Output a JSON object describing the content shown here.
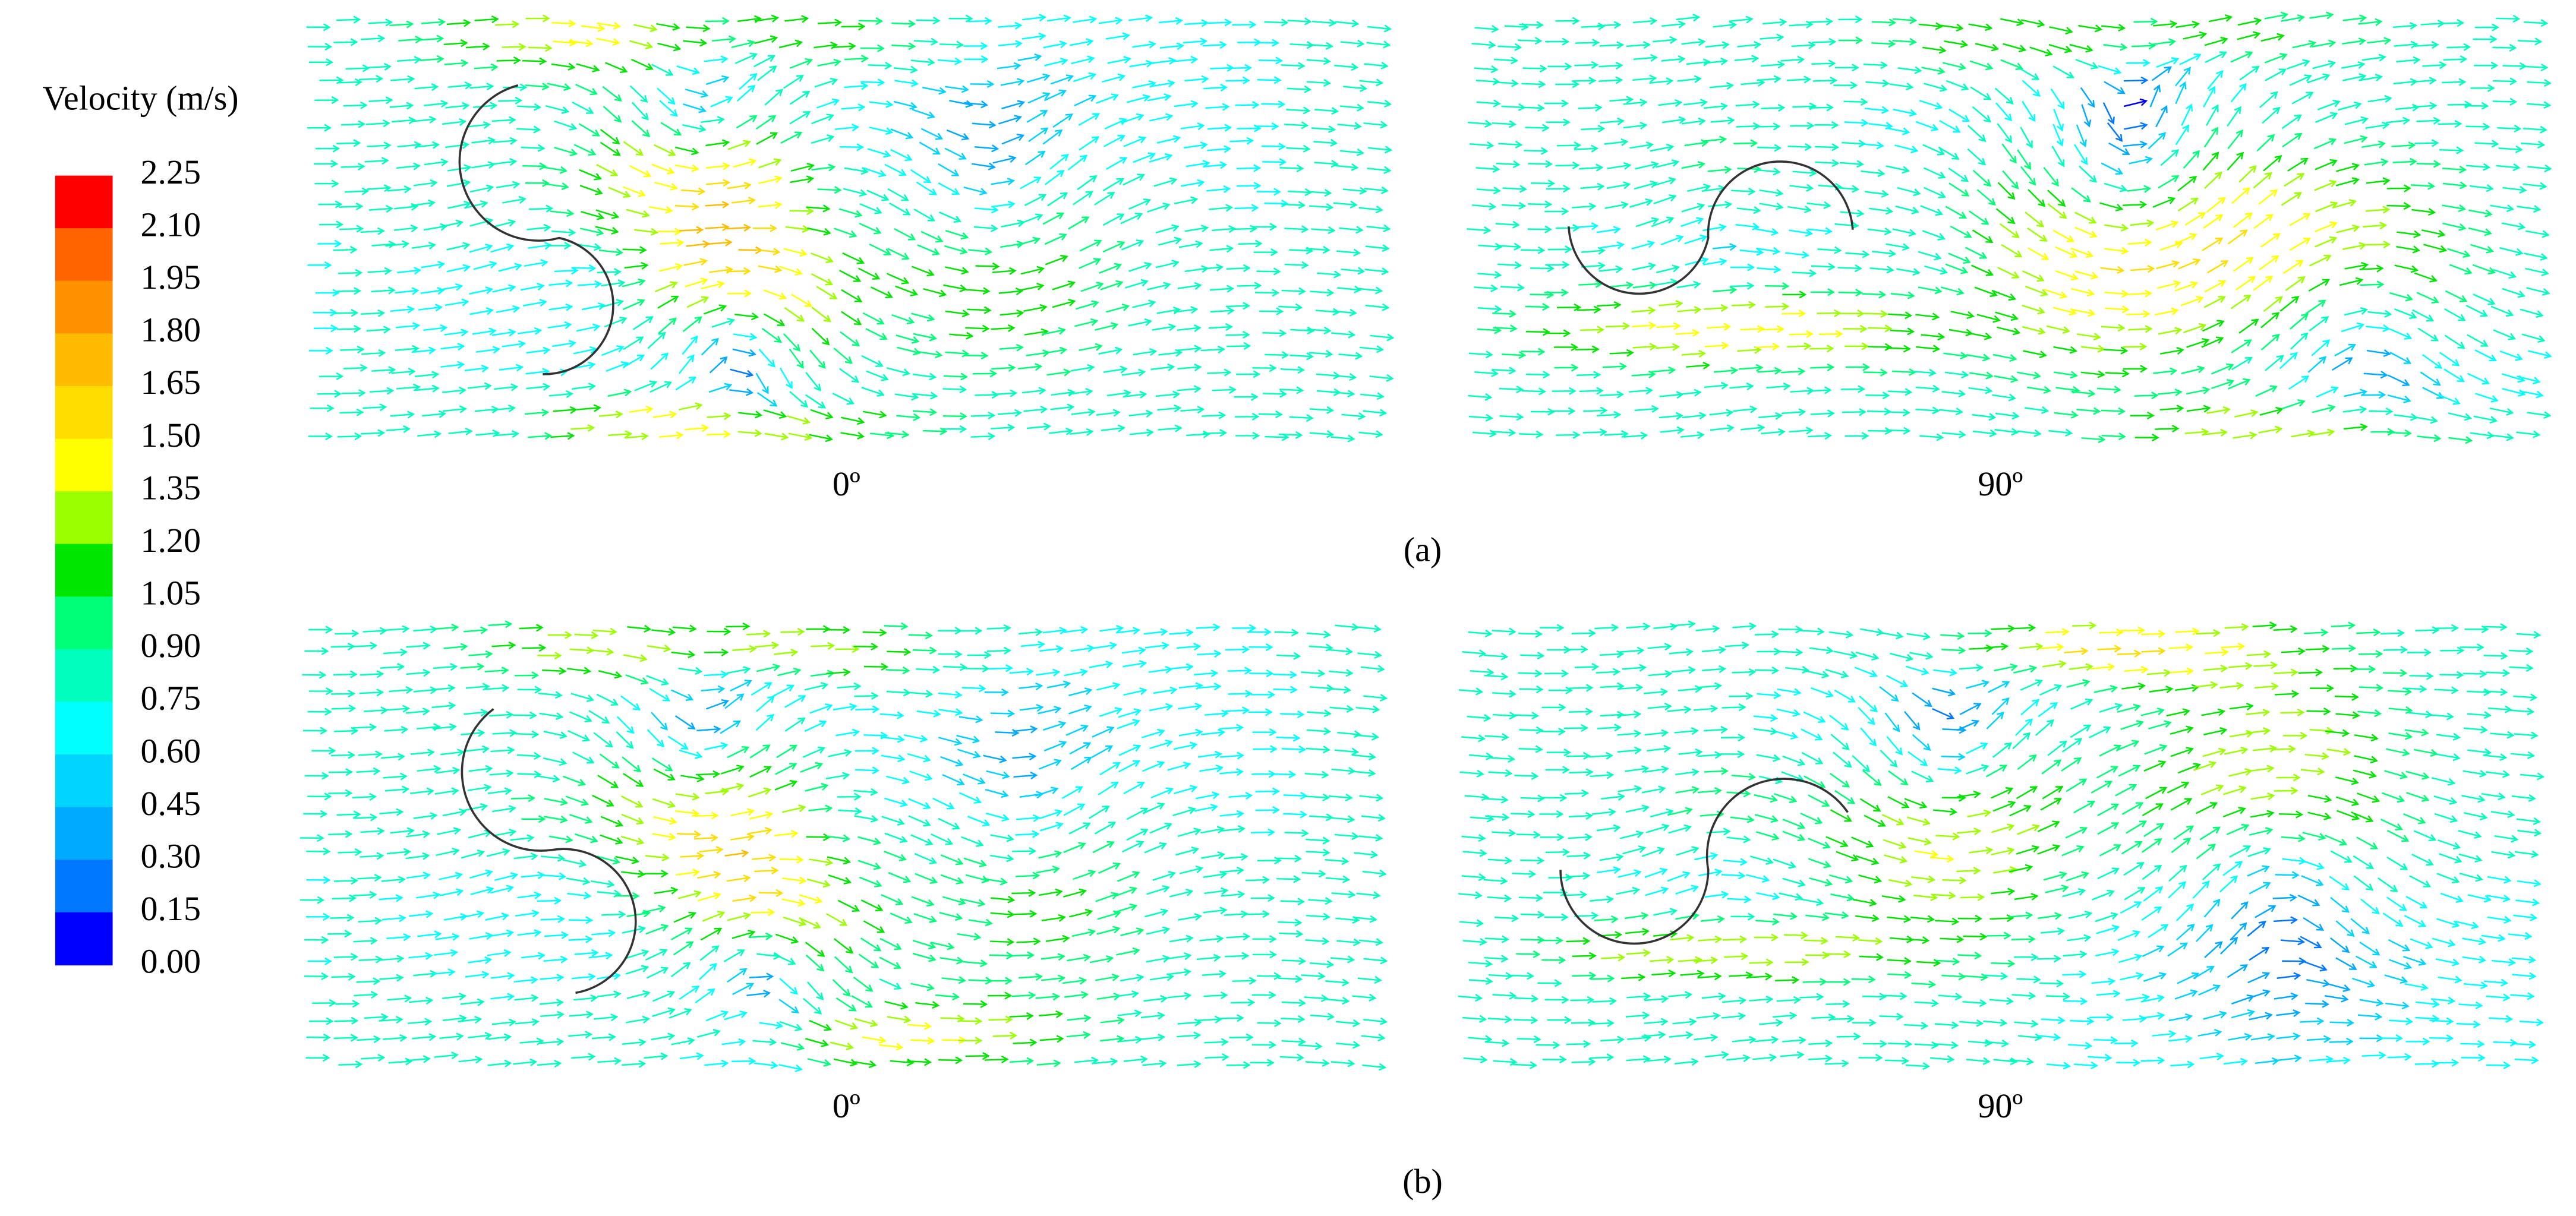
{
  "legend": {
    "title": "Velocity (m/s)",
    "labels": [
      "2.25",
      "2.10",
      "1.95",
      "1.80",
      "1.65",
      "1.50",
      "1.35",
      "1.20",
      "1.05",
      "0.90",
      "0.75",
      "0.60",
      "0.45",
      "0.30",
      "0.15",
      "0.00"
    ],
    "colors": [
      "#ff0000",
      "#ff6400",
      "#ff9100",
      "#ffbb00",
      "#ffdd00",
      "#ffff00",
      "#9bff00",
      "#00e600",
      "#00ff78",
      "#00ffbe",
      "#00ffff",
      "#00d4ff",
      "#00aaff",
      "#0078ff",
      "#0000ff"
    ]
  },
  "panels": [
    {
      "caption": "0º"
    },
    {
      "caption": "90º"
    },
    {
      "caption": "0º"
    },
    {
      "caption": "90º"
    }
  ],
  "row_labels": [
    "(a)",
    "(b)"
  ]
}
